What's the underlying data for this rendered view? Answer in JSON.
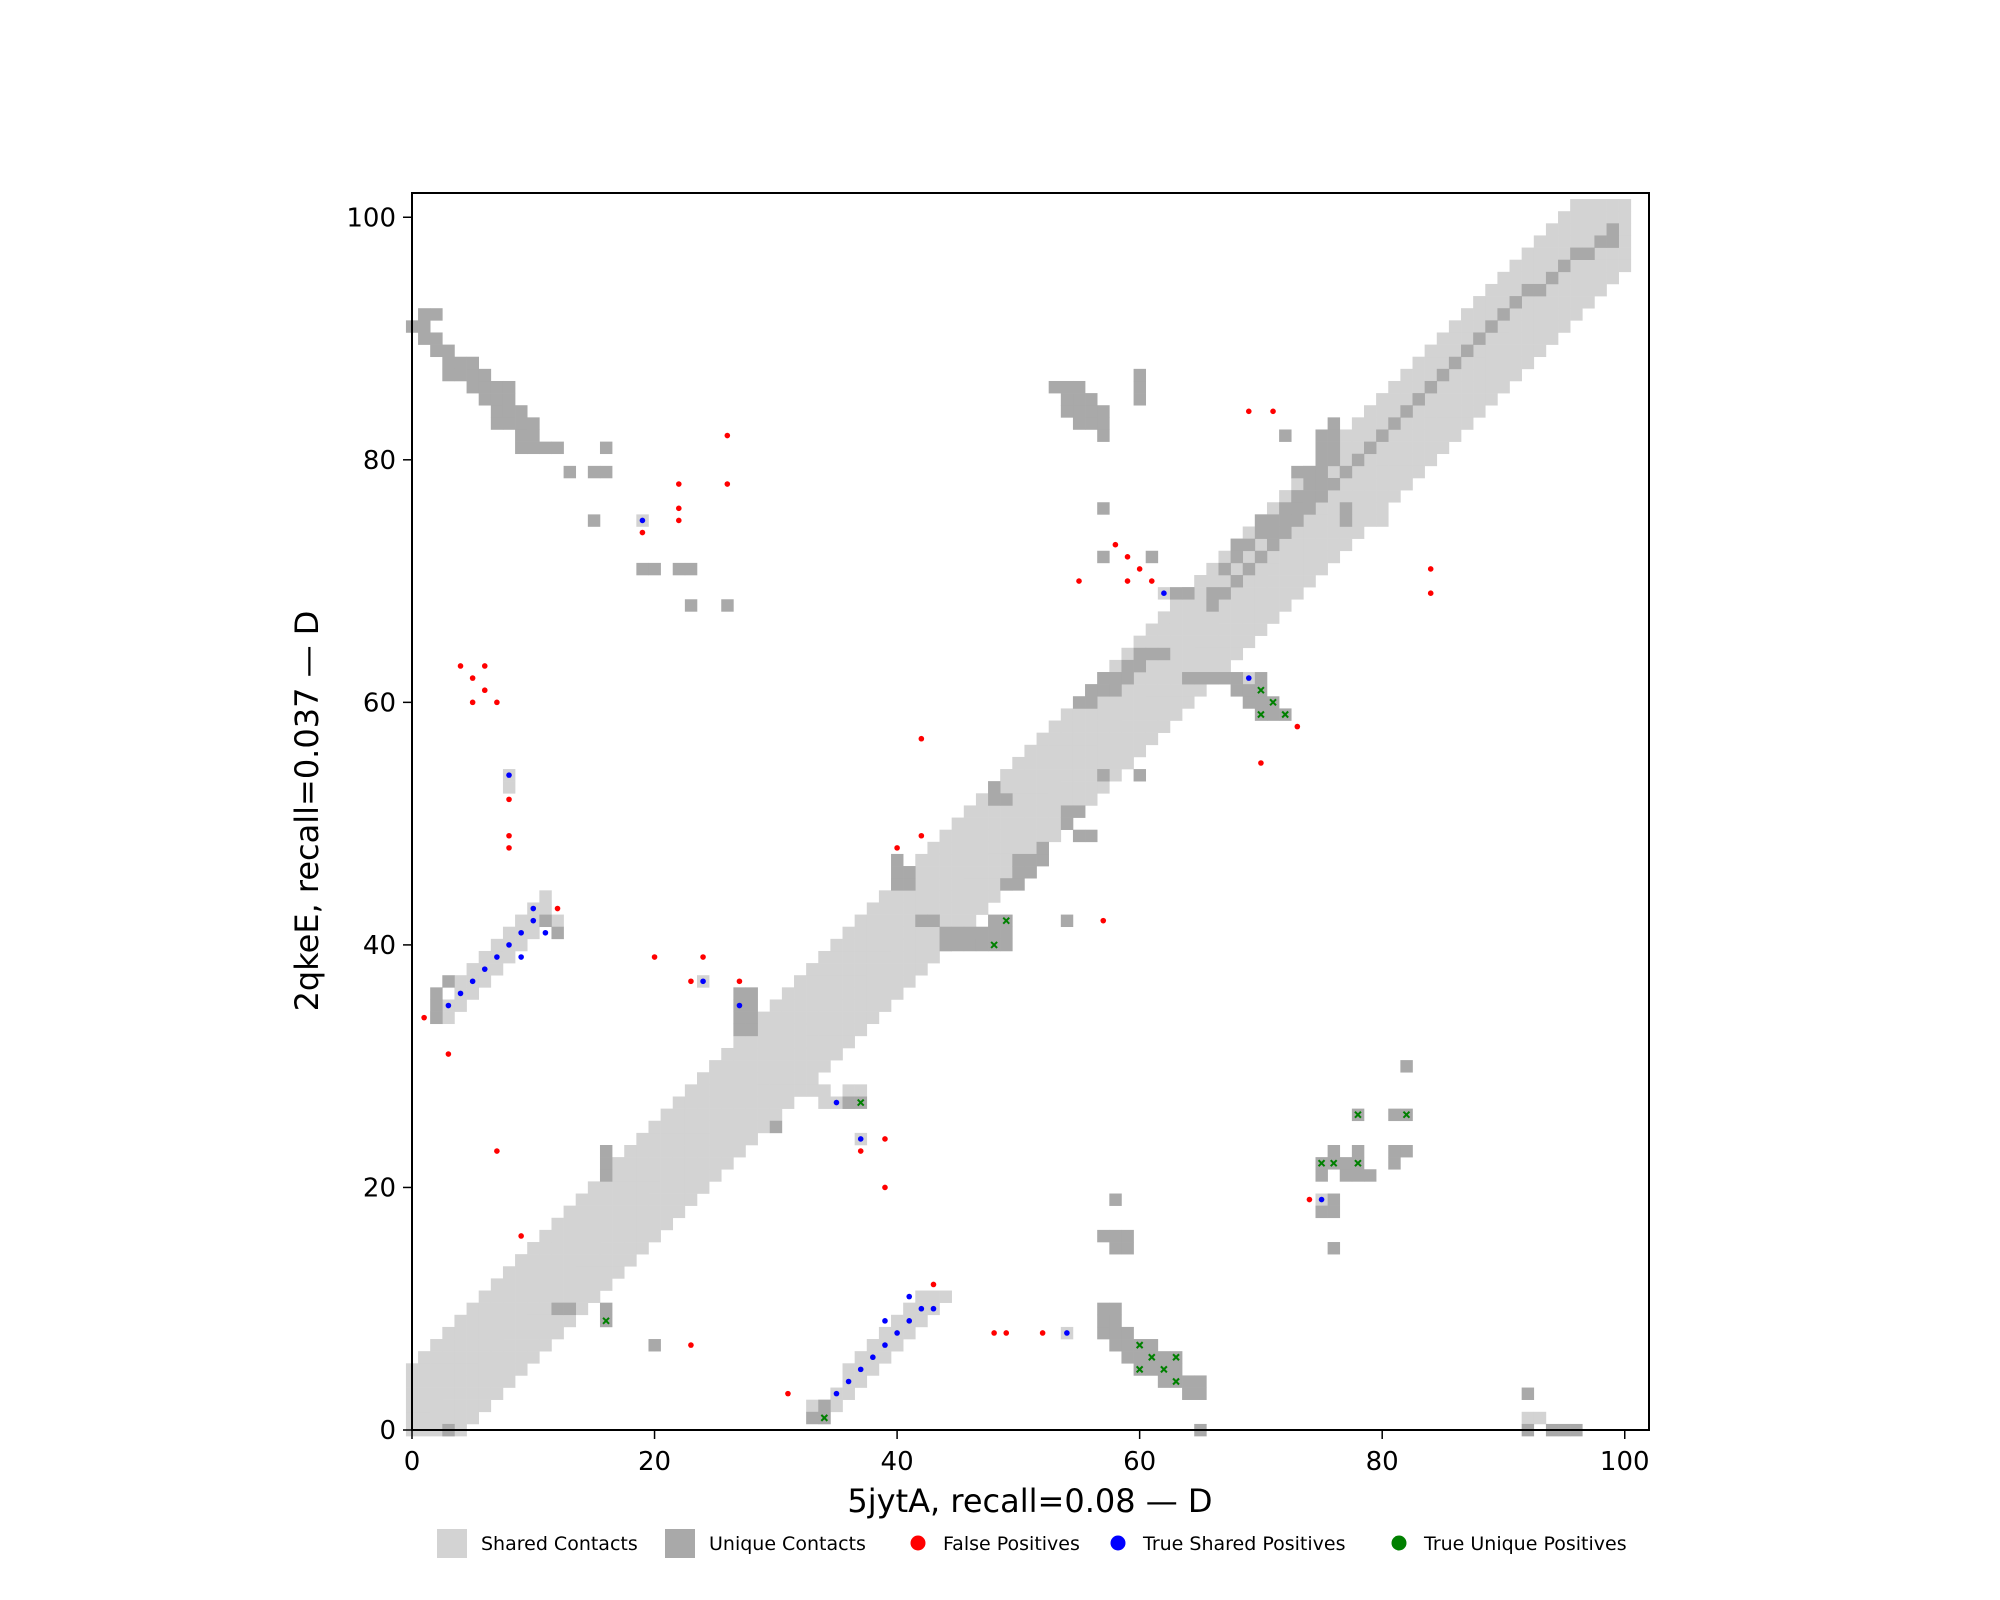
{
  "chart_data": {
    "type": "heatmap",
    "title": "",
    "xlabel": "5jytA, recall=0.08 — D",
    "ylabel": "2qkeE, recall=0.037 — D",
    "xlim": [
      0,
      102
    ],
    "ylim": [
      0,
      102
    ],
    "x_ticks": [
      "0",
      "20",
      "40",
      "60",
      "80",
      "100"
    ],
    "y_ticks": [
      "0",
      "20",
      "40",
      "60",
      "80",
      "100"
    ],
    "grid": false,
    "legend_position": "bottom",
    "legend": [
      {
        "label": "Shared Contacts",
        "kind": "square",
        "color": "#d3d3d3"
      },
      {
        "label": "Unique Contacts",
        "kind": "square",
        "color": "#a9a9a9"
      },
      {
        "label": "False Positives",
        "kind": "dot",
        "color": "#ff0000"
      },
      {
        "label": "True Shared Positives",
        "kind": "dot",
        "color": "#0000ff"
      },
      {
        "label": "True Unique Positives",
        "kind": "dot",
        "color": "#008000"
      }
    ],
    "shared_contacts_band": {
      "description_kind": "diagonal",
      "offsets_below": [
        1,
        2,
        3,
        4
      ],
      "offsets_above": [
        1,
        2,
        3,
        4,
        5
      ]
    },
    "shared_contacts": [
      [
        19,
        75
      ],
      [
        24,
        37
      ],
      [
        54,
        8
      ],
      [
        62,
        69
      ],
      [
        69,
        62
      ],
      [
        37,
        24
      ],
      [
        75,
        19
      ],
      [
        8,
        54
      ],
      [
        8,
        53
      ],
      [
        3,
        35
      ],
      [
        3,
        34
      ],
      [
        4,
        36
      ],
      [
        4,
        35
      ],
      [
        5,
        37
      ],
      [
        5,
        36
      ],
      [
        6,
        38
      ],
      [
        6,
        37
      ],
      [
        7,
        39
      ],
      [
        7,
        38
      ],
      [
        8,
        40
      ],
      [
        8,
        39
      ],
      [
        9,
        41
      ],
      [
        9,
        40
      ],
      [
        10,
        42
      ],
      [
        10,
        41
      ],
      [
        11,
        43
      ],
      [
        11,
        42
      ],
      [
        11,
        44
      ],
      [
        12,
        42
      ],
      [
        9,
        42
      ],
      [
        10,
        43
      ],
      [
        8,
        41
      ],
      [
        7,
        40
      ],
      [
        6,
        39
      ],
      [
        5,
        38
      ],
      [
        4,
        37
      ],
      [
        2,
        34
      ],
      [
        34,
        2
      ],
      [
        35,
        3
      ],
      [
        35,
        2
      ],
      [
        36,
        4
      ],
      [
        36,
        3
      ],
      [
        37,
        5
      ],
      [
        37,
        4
      ],
      [
        38,
        6
      ],
      [
        38,
        5
      ],
      [
        39,
        7
      ],
      [
        39,
        6
      ],
      [
        40,
        8
      ],
      [
        40,
        7
      ],
      [
        41,
        9
      ],
      [
        41,
        8
      ],
      [
        42,
        10
      ],
      [
        42,
        9
      ],
      [
        43,
        11
      ],
      [
        43,
        10
      ],
      [
        44,
        11
      ],
      [
        42,
        11
      ],
      [
        41,
        10
      ],
      [
        40,
        9
      ],
      [
        39,
        8
      ],
      [
        38,
        7
      ],
      [
        37,
        6
      ],
      [
        36,
        5
      ],
      [
        34,
        1
      ],
      [
        33,
        2
      ],
      [
        35,
        27
      ],
      [
        36,
        27
      ],
      [
        33,
        28
      ],
      [
        34,
        28
      ],
      [
        36,
        28
      ],
      [
        37,
        28
      ],
      [
        34,
        27
      ],
      [
        92,
        1
      ],
      [
        93,
        1
      ],
      [
        79,
        75
      ],
      [
        80,
        75
      ]
    ],
    "unique_contacts": [
      [
        0,
        91
      ],
      [
        1,
        91
      ],
      [
        1,
        92
      ],
      [
        2,
        92
      ],
      [
        1,
        90
      ],
      [
        2,
        90
      ],
      [
        2,
        89
      ],
      [
        3,
        89
      ],
      [
        3,
        88
      ],
      [
        4,
        88
      ],
      [
        3,
        87
      ],
      [
        4,
        87
      ],
      [
        5,
        87
      ],
      [
        5,
        86
      ],
      [
        6,
        86
      ],
      [
        6,
        85
      ],
      [
        7,
        85
      ],
      [
        7,
        84
      ],
      [
        8,
        84
      ],
      [
        8,
        83
      ],
      [
        9,
        83
      ],
      [
        9,
        82
      ],
      [
        10,
        82
      ],
      [
        10,
        81
      ],
      [
        11,
        81
      ],
      [
        12,
        81
      ],
      [
        7,
        86
      ],
      [
        8,
        86
      ],
      [
        8,
        85
      ],
      [
        9,
        84
      ],
      [
        6,
        87
      ],
      [
        5,
        88
      ],
      [
        7,
        83
      ],
      [
        9,
        81
      ],
      [
        10,
        83
      ],
      [
        13,
        79
      ],
      [
        15,
        79
      ],
      [
        16,
        79
      ],
      [
        16,
        81
      ],
      [
        15,
        75
      ],
      [
        19,
        71
      ],
      [
        20,
        71
      ],
      [
        22,
        71
      ],
      [
        23,
        71
      ],
      [
        23,
        68
      ],
      [
        26,
        68
      ],
      [
        53,
        86
      ],
      [
        54,
        86
      ],
      [
        55,
        86
      ],
      [
        55,
        85
      ],
      [
        56,
        85
      ],
      [
        56,
        84
      ],
      [
        56,
        83
      ],
      [
        55,
        83
      ],
      [
        57,
        83
      ],
      [
        55,
        84
      ],
      [
        54,
        85
      ],
      [
        54,
        84
      ],
      [
        57,
        84
      ],
      [
        57,
        82
      ],
      [
        60,
        86
      ],
      [
        60,
        85
      ],
      [
        60,
        87
      ],
      [
        57,
        76
      ],
      [
        57,
        72
      ],
      [
        61,
        72
      ],
      [
        63,
        69
      ],
      [
        64,
        69
      ],
      [
        66,
        69
      ],
      [
        66,
        68
      ],
      [
        72,
        82
      ],
      [
        75,
        82
      ],
      [
        75,
        81
      ],
      [
        76,
        83
      ],
      [
        76,
        82
      ],
      [
        76,
        81
      ],
      [
        76,
        80
      ],
      [
        75,
        80
      ],
      [
        74,
        79
      ],
      [
        74,
        78
      ],
      [
        74,
        77
      ],
      [
        75,
        78
      ],
      [
        75,
        79
      ],
      [
        73,
        79
      ],
      [
        77,
        76
      ],
      [
        77,
        75
      ],
      [
        64,
        62
      ],
      [
        65,
        62
      ],
      [
        66,
        62
      ],
      [
        67,
        62
      ],
      [
        68,
        62
      ],
      [
        68,
        61
      ],
      [
        69,
        61
      ],
      [
        70,
        61
      ],
      [
        70,
        62
      ],
      [
        70,
        60
      ],
      [
        71,
        60
      ],
      [
        71,
        59
      ],
      [
        72,
        59
      ],
      [
        69,
        60
      ],
      [
        70,
        59
      ],
      [
        70,
        74
      ],
      [
        71,
        74
      ],
      [
        70,
        75
      ],
      [
        71,
        75
      ],
      [
        72,
        76
      ],
      [
        72,
        75
      ],
      [
        69,
        73
      ],
      [
        68,
        73
      ],
      [
        68,
        72
      ],
      [
        67,
        71
      ],
      [
        73,
        76
      ],
      [
        73,
        77
      ],
      [
        55,
        60
      ],
      [
        56,
        60
      ],
      [
        56,
        61
      ],
      [
        57,
        61
      ],
      [
        58,
        62
      ],
      [
        59,
        62
      ],
      [
        59,
        63
      ],
      [
        60,
        63
      ],
      [
        61,
        64
      ],
      [
        62,
        64
      ],
      [
        60,
        64
      ],
      [
        58,
        61
      ],
      [
        57,
        62
      ],
      [
        57,
        54
      ],
      [
        60,
        54
      ],
      [
        54,
        50
      ],
      [
        54,
        51
      ],
      [
        55,
        51
      ],
      [
        55,
        49
      ],
      [
        56,
        49
      ],
      [
        48,
        53
      ],
      [
        48,
        52
      ],
      [
        49,
        52
      ],
      [
        50,
        46
      ],
      [
        50,
        47
      ],
      [
        51,
        46
      ],
      [
        51,
        47
      ],
      [
        52,
        47
      ],
      [
        52,
        48
      ],
      [
        49,
        45
      ],
      [
        50,
        45
      ],
      [
        40,
        47
      ],
      [
        40,
        46
      ],
      [
        41,
        46
      ],
      [
        41,
        45
      ],
      [
        40,
        45
      ],
      [
        42,
        42
      ],
      [
        43,
        42
      ],
      [
        44,
        41
      ],
      [
        44,
        40
      ],
      [
        45,
        40
      ],
      [
        45,
        41
      ],
      [
        46,
        40
      ],
      [
        47,
        41
      ],
      [
        47,
        40
      ],
      [
        46,
        41
      ],
      [
        48,
        42
      ],
      [
        48,
        41
      ],
      [
        49,
        42
      ],
      [
        49,
        41
      ],
      [
        49,
        40
      ],
      [
        48,
        40
      ],
      [
        54,
        42
      ],
      [
        27,
        36
      ],
      [
        28,
        36
      ],
      [
        27,
        35
      ],
      [
        28,
        35
      ],
      [
        28,
        34
      ],
      [
        27,
        34
      ],
      [
        28,
        33
      ],
      [
        27,
        33
      ],
      [
        30,
        25
      ],
      [
        16,
        22
      ],
      [
        16,
        21
      ],
      [
        16,
        23
      ],
      [
        11,
        42
      ],
      [
        12,
        41
      ],
      [
        3,
        37
      ],
      [
        2,
        36
      ],
      [
        2,
        35
      ],
      [
        2,
        34
      ],
      [
        36,
        27
      ],
      [
        37,
        27
      ],
      [
        12,
        10
      ],
      [
        13,
        10
      ],
      [
        16,
        9
      ],
      [
        16,
        10
      ],
      [
        20,
        7
      ],
      [
        33,
        1
      ],
      [
        34,
        1
      ],
      [
        34,
        2
      ],
      [
        57,
        8
      ],
      [
        57,
        9
      ],
      [
        58,
        9
      ],
      [
        58,
        8
      ],
      [
        58,
        7
      ],
      [
        59,
        7
      ],
      [
        59,
        8
      ],
      [
        59,
        6
      ],
      [
        60,
        6
      ],
      [
        60,
        7
      ],
      [
        60,
        5
      ],
      [
        61,
        5
      ],
      [
        61,
        6
      ],
      [
        62,
        5
      ],
      [
        62,
        4
      ],
      [
        63,
        4
      ],
      [
        63,
        6
      ],
      [
        64,
        4
      ],
      [
        64,
        3
      ],
      [
        65,
        3
      ],
      [
        65,
        4
      ],
      [
        63,
        5
      ],
      [
        62,
        6
      ],
      [
        61,
        7
      ],
      [
        58,
        10
      ],
      [
        57,
        10
      ],
      [
        58,
        16
      ],
      [
        58,
        15
      ],
      [
        59,
        15
      ],
      [
        59,
        16
      ],
      [
        57,
        16
      ],
      [
        58,
        19
      ],
      [
        75,
        22
      ],
      [
        76,
        22
      ],
      [
        76,
        23
      ],
      [
        77,
        22
      ],
      [
        77,
        21
      ],
      [
        78,
        21
      ],
      [
        78,
        22
      ],
      [
        78,
        23
      ],
      [
        78,
        26
      ],
      [
        75,
        21
      ],
      [
        76,
        18
      ],
      [
        75,
        18
      ],
      [
        76,
        19
      ],
      [
        76,
        15
      ],
      [
        82,
        26
      ],
      [
        81,
        26
      ],
      [
        81,
        23
      ],
      [
        82,
        23
      ],
      [
        81,
        22
      ],
      [
        82,
        30
      ],
      [
        79,
        21
      ],
      [
        92,
        3
      ],
      [
        92,
        0
      ],
      [
        94,
        0
      ],
      [
        95,
        0
      ],
      [
        96,
        0
      ],
      [
        3,
        0
      ],
      [
        65,
        0
      ],
      [
        99,
        99
      ],
      [
        99,
        98
      ],
      [
        98,
        98
      ],
      [
        97,
        97
      ],
      [
        96,
        97
      ],
      [
        95,
        96
      ],
      [
        94,
        95
      ],
      [
        93,
        94
      ],
      [
        92,
        94
      ],
      [
        91,
        93
      ],
      [
        90,
        92
      ],
      [
        89,
        91
      ],
      [
        88,
        90
      ],
      [
        87,
        89
      ],
      [
        86,
        88
      ],
      [
        85,
        87
      ],
      [
        84,
        86
      ],
      [
        83,
        85
      ],
      [
        82,
        84
      ],
      [
        81,
        83
      ],
      [
        80,
        82
      ],
      [
        79,
        81
      ],
      [
        78,
        80
      ],
      [
        77,
        79
      ],
      [
        76,
        78
      ],
      [
        75,
        77
      ],
      [
        74,
        76
      ],
      [
        73,
        75
      ],
      [
        72,
        74
      ],
      [
        71,
        73
      ],
      [
        70,
        72
      ],
      [
        69,
        71
      ],
      [
        68,
        70
      ],
      [
        67,
        69
      ]
    ],
    "false_positives": [
      [
        1,
        34
      ],
      [
        3,
        31
      ],
      [
        4,
        63
      ],
      [
        5,
        62
      ],
      [
        6,
        63
      ],
      [
        6,
        61
      ],
      [
        5,
        60
      ],
      [
        7,
        60
      ],
      [
        8,
        52
      ],
      [
        8,
        49
      ],
      [
        8,
        48
      ],
      [
        7,
        23
      ],
      [
        9,
        16
      ],
      [
        12,
        43
      ],
      [
        19,
        74
      ],
      [
        22,
        78
      ],
      [
        22,
        76
      ],
      [
        22,
        75
      ],
      [
        26,
        82
      ],
      [
        26,
        78
      ],
      [
        20,
        39
      ],
      [
        23,
        37
      ],
      [
        24,
        39
      ],
      [
        27,
        37
      ],
      [
        23,
        7
      ],
      [
        31,
        3
      ],
      [
        37,
        23
      ],
      [
        39,
        24
      ],
      [
        39,
        20
      ],
      [
        40,
        48
      ],
      [
        42,
        49
      ],
      [
        42,
        57
      ],
      [
        43,
        12
      ],
      [
        48,
        8
      ],
      [
        49,
        8
      ],
      [
        52,
        8
      ],
      [
        57,
        42
      ],
      [
        55,
        70
      ],
      [
        58,
        73
      ],
      [
        59,
        72
      ],
      [
        59,
        70
      ],
      [
        60,
        71
      ],
      [
        61,
        70
      ],
      [
        69,
        84
      ],
      [
        71,
        84
      ],
      [
        70,
        55
      ],
      [
        73,
        58
      ],
      [
        74,
        19
      ],
      [
        84,
        71
      ],
      [
        84,
        69
      ]
    ],
    "true_shared_positives": [
      [
        3,
        35
      ],
      [
        4,
        36
      ],
      [
        5,
        37
      ],
      [
        6,
        38
      ],
      [
        7,
        39
      ],
      [
        8,
        40
      ],
      [
        9,
        41
      ],
      [
        9,
        39
      ],
      [
        10,
        42
      ],
      [
        10,
        43
      ],
      [
        11,
        41
      ],
      [
        8,
        54
      ],
      [
        19,
        75
      ],
      [
        24,
        37
      ],
      [
        27,
        35
      ],
      [
        35,
        27
      ],
      [
        37,
        24
      ],
      [
        35,
        3
      ],
      [
        36,
        4
      ],
      [
        37,
        5
      ],
      [
        38,
        6
      ],
      [
        39,
        7
      ],
      [
        39,
        9
      ],
      [
        40,
        8
      ],
      [
        41,
        9
      ],
      [
        41,
        11
      ],
      [
        42,
        10
      ],
      [
        43,
        10
      ],
      [
        54,
        8
      ],
      [
        62,
        69
      ],
      [
        69,
        62
      ],
      [
        75,
        19
      ]
    ],
    "true_unique_positives": [
      [
        16,
        9
      ],
      [
        34,
        1
      ],
      [
        37,
        27
      ],
      [
        48,
        40
      ],
      [
        49,
        42
      ],
      [
        70,
        61
      ],
      [
        71,
        60
      ],
      [
        70,
        59
      ],
      [
        72,
        59
      ],
      [
        60,
        7
      ],
      [
        61,
        6
      ],
      [
        60,
        5
      ],
      [
        62,
        5
      ],
      [
        63,
        6
      ],
      [
        63,
        4
      ],
      [
        75,
        22
      ],
      [
        76,
        22
      ],
      [
        78,
        22
      ],
      [
        78,
        26
      ],
      [
        82,
        26
      ]
    ]
  }
}
